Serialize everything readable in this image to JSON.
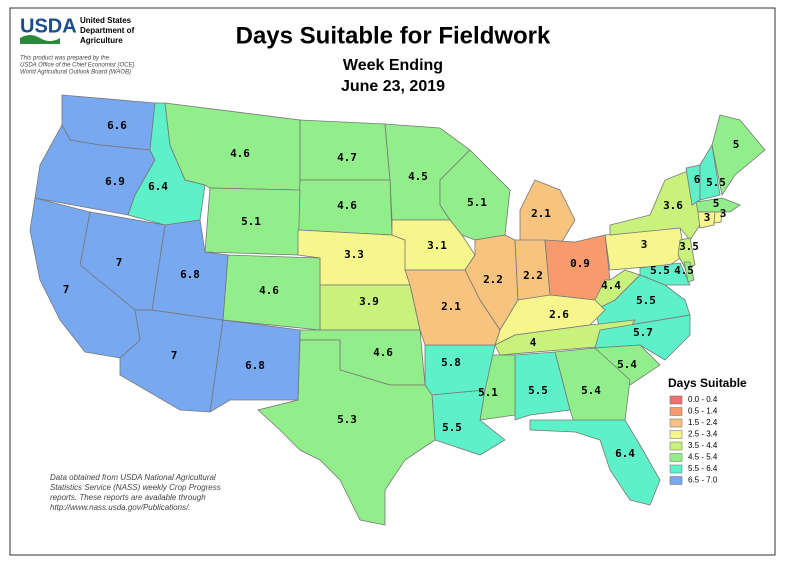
{
  "header": {
    "logo": "USDA",
    "agency": [
      "United States",
      "Department of",
      "Agriculture"
    ],
    "note": [
      "This product was prepared by the",
      "USDA Office of the Chief Economist (OCE)",
      "World Agricultural Outlook Board (WAOB)"
    ]
  },
  "title": "Days Suitable for Fieldwork",
  "subtitle": "Week Ending",
  "date": "June 23, 2019",
  "legend": {
    "title": "Days Suitable",
    "items": [
      {
        "label": "0.0 - 0.4",
        "min": 0.0,
        "max": 0.4,
        "color": "#f07070"
      },
      {
        "label": "0.5 - 1.4",
        "min": 0.5,
        "max": 1.4,
        "color": "#f79a6e"
      },
      {
        "label": "1.5 - 2.4",
        "min": 1.5,
        "max": 2.4,
        "color": "#f6c47e"
      },
      {
        "label": "2.5 - 3.4",
        "min": 2.5,
        "max": 3.4,
        "color": "#f6f68c"
      },
      {
        "label": "3.5 - 4.4",
        "min": 3.5,
        "max": 4.4,
        "color": "#c9f27c"
      },
      {
        "label": "4.5 - 5.4",
        "min": 4.5,
        "max": 5.4,
        "color": "#92ee8a"
      },
      {
        "label": "5.5 - 6.4",
        "min": 5.5,
        "max": 6.4,
        "color": "#5ef0c8"
      },
      {
        "label": "6.5 - 7.0",
        "min": 6.5,
        "max": 7.0,
        "color": "#78a8f0"
      }
    ]
  },
  "state_values": {
    "WA": 6.6,
    "OR": 6.9,
    "ID": 6.4,
    "MT": 4.6,
    "ND": 4.7,
    "MN": 4.5,
    "WI": 5.1,
    "MI": 2.1,
    "SD": 4.6,
    "WY": 5.1,
    "NE": 3.3,
    "IA": 3.1,
    "IL": 2.2,
    "IN": 2.2,
    "OH": 0.9,
    "PA": 3,
    "NY": 3.6,
    "VT": 6,
    "NH": 5.5,
    "ME": 5,
    "MA": 5,
    "CT": 3,
    "RI": 3,
    "NJ": 3.5,
    "MD": 5.5,
    "DE": 4.5,
    "WV": 4.4,
    "VA": 5.5,
    "KY": 2.6,
    "TN": 4,
    "NC": 5.7,
    "SC": 5.4,
    "GA": 5.4,
    "AL": 5.5,
    "MS": 5.1,
    "LA": 5.5,
    "AR": 5.8,
    "MO": 2.1,
    "KS": 3.9,
    "OK": 4.6,
    "TX": 5.3,
    "NM": 6.8,
    "AZ": 7,
    "CO": 4.6,
    "UT": 6.8,
    "NV": 7,
    "CA": 7,
    "FL": 6.4
  },
  "footnote": [
    "Data obtained from USDA National Agricultural",
    "Statistics Service (NASS) weekly Crop Progress",
    "reports.  These reports are available through",
    "http://www.nass.usda.gov/Publications/."
  ]
}
